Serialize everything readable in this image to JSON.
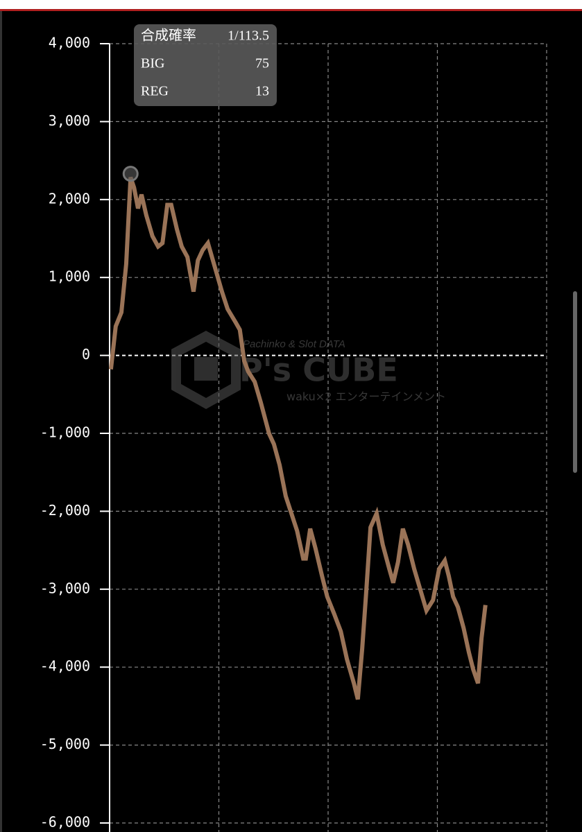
{
  "chart_data": {
    "type": "line",
    "info": [
      {
        "label": "合成確率",
        "value": "1/113.5"
      },
      {
        "label": "BIG",
        "value": "75"
      },
      {
        "label": "REG",
        "value": "13"
      }
    ],
    "watermark": {
      "tagline": "Pachinko & Slot DATA",
      "brand": "P's CUBE",
      "company": "waku×2 エンターテインメント"
    },
    "color": "#9a7357",
    "grid": true,
    "xlim": [
      0,
      100
    ],
    "ylim": [
      -6000,
      4000
    ],
    "yticks": [
      {
        "value": 4000,
        "label": "4,000"
      },
      {
        "value": 3000,
        "label": "3,000"
      },
      {
        "value": 2000,
        "label": "2,000"
      },
      {
        "value": 1000,
        "label": "1,000"
      },
      0,
      {
        "value": -1000,
        "label": "-1,000"
      },
      {
        "value": -2000,
        "label": "-2,000"
      },
      {
        "value": -3000,
        "label": "-3,000"
      },
      {
        "value": -4000,
        "label": "-4,000"
      },
      {
        "value": -5000,
        "label": "-5,000"
      },
      {
        "value": -6000,
        "label": "-6,000"
      }
    ],
    "x": [
      0.3,
      1.4,
      2.7,
      3.8,
      4.8,
      5.6,
      6.5,
      7.3,
      8.4,
      9.8,
      11.1,
      12.1,
      13.2,
      14.1,
      15.4,
      16.5,
      17.8,
      19.2,
      20.2,
      21.3,
      22.5,
      24.1,
      25.7,
      27.0,
      28.9,
      29.8,
      30.8,
      31.7,
      33.2,
      34.6,
      36.5,
      37.6,
      38.9,
      40.3,
      41.6,
      42.9,
      44.3,
      44.9,
      45.9,
      47.1,
      48.6,
      49.8,
      51.4,
      52.9,
      54.3,
      55.9,
      56.8,
      57.8,
      58.7,
      59.7,
      61.1,
      62.5,
      64.0,
      64.9,
      66.0,
      67.1,
      68.3,
      69.7,
      71.1,
      72.5,
      74.0,
      75.4,
      76.7,
      77.6,
      78.6,
      79.7,
      81.0,
      82.2,
      83.2,
      84.3,
      85.1,
      86.0
    ],
    "values": [
      -178,
      374,
      552,
      1174,
      2286,
      2153,
      1886,
      2064,
      1797,
      1530,
      1397,
      1441,
      1931,
      1931,
      1619,
      1397,
      1263,
      819,
      1219,
      1352,
      1441,
      1130,
      819,
      596,
      418,
      329,
      -71,
      -205,
      -338,
      -605,
      -1005,
      -1139,
      -1406,
      -1806,
      -2028,
      -2251,
      -2607,
      -2607,
      -2224,
      -2473,
      -2829,
      -3096,
      -3319,
      -3541,
      -3897,
      -4208,
      -4413,
      -3763,
      -3052,
      -2206,
      -2028,
      -2429,
      -2740,
      -2918,
      -2651,
      -2224,
      -2429,
      -2740,
      -3007,
      -3274,
      -3141,
      -2740,
      -2633,
      -2829,
      -3096,
      -3230,
      -3497,
      -3808,
      -4030,
      -4208,
      -3630,
      -3203
    ],
    "highlight_index": 4
  }
}
